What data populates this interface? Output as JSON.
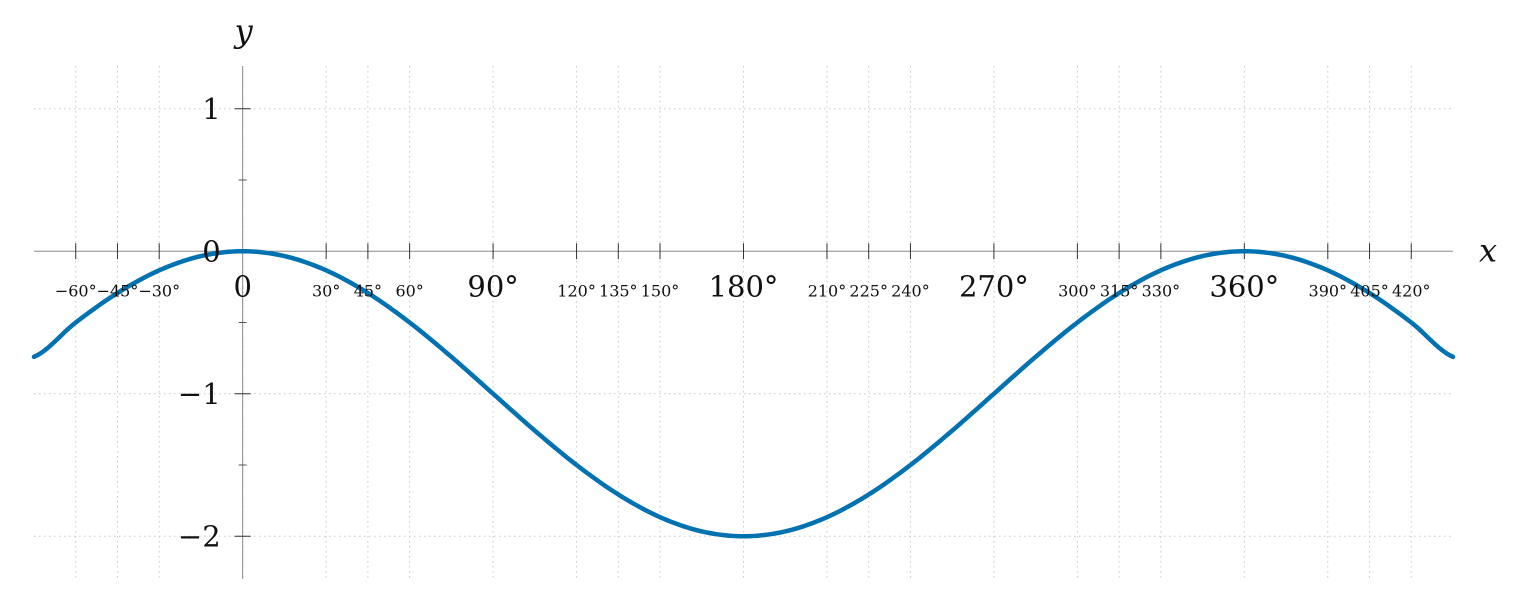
{
  "chart_data": {
    "type": "line",
    "title": "",
    "xlabel": "x",
    "ylabel": "y",
    "xlim": [
      -75,
      435
    ],
    "ylim": [
      -2.3,
      1.3
    ],
    "grid": true,
    "x_ticks_major": [
      {
        "value": 0,
        "label": "0"
      },
      {
        "value": 90,
        "label": "90°"
      },
      {
        "value": 180,
        "label": "180°"
      },
      {
        "value": 270,
        "label": "270°"
      },
      {
        "value": 360,
        "label": "360°"
      }
    ],
    "x_ticks_minor": [
      {
        "value": -60,
        "label": "−60°"
      },
      {
        "value": -45,
        "label": "−45°"
      },
      {
        "value": -30,
        "label": "−30°"
      },
      {
        "value": 30,
        "label": "30°"
      },
      {
        "value": 45,
        "label": "45°"
      },
      {
        "value": 60,
        "label": "60°"
      },
      {
        "value": 120,
        "label": "120°"
      },
      {
        "value": 135,
        "label": "135°"
      },
      {
        "value": 150,
        "label": "150°"
      },
      {
        "value": 210,
        "label": "210°"
      },
      {
        "value": 225,
        "label": "225°"
      },
      {
        "value": 240,
        "label": "240°"
      },
      {
        "value": 300,
        "label": "300°"
      },
      {
        "value": 315,
        "label": "315°"
      },
      {
        "value": 330,
        "label": "330°"
      },
      {
        "value": 390,
        "label": "390°"
      },
      {
        "value": 405,
        "label": "405°"
      },
      {
        "value": 420,
        "label": "420°"
      }
    ],
    "y_ticks": [
      {
        "value": 1,
        "label": "1"
      },
      {
        "value": 0,
        "label": "0"
      },
      {
        "value": -1,
        "label": "−1"
      },
      {
        "value": -2,
        "label": "−2"
      }
    ],
    "y_minor_ticks": [
      0.5,
      -0.5,
      -1.5
    ],
    "series": [
      {
        "color": "#0072b2",
        "x": [
          -75,
          -60,
          -45,
          -30,
          -15,
          0,
          15,
          30,
          45,
          60,
          75,
          90,
          105,
          120,
          135,
          150,
          165,
          180,
          195,
          210,
          225,
          240,
          255,
          270,
          285,
          300,
          315,
          330,
          345,
          360,
          375,
          390,
          405,
          420,
          435
        ],
        "y": [
          -0.741,
          -0.5,
          -0.293,
          -0.134,
          -0.034,
          0,
          -0.034,
          -0.134,
          -0.293,
          -0.5,
          -0.741,
          -1,
          -1.259,
          -1.5,
          -1.707,
          -1.866,
          -1.966,
          -2,
          -1.966,
          -1.866,
          -1.707,
          -1.5,
          -1.259,
          -1,
          -0.741,
          -0.5,
          -0.293,
          -0.134,
          -0.034,
          0,
          -0.034,
          -0.134,
          -0.293,
          -0.5,
          -0.741
        ]
      }
    ]
  }
}
